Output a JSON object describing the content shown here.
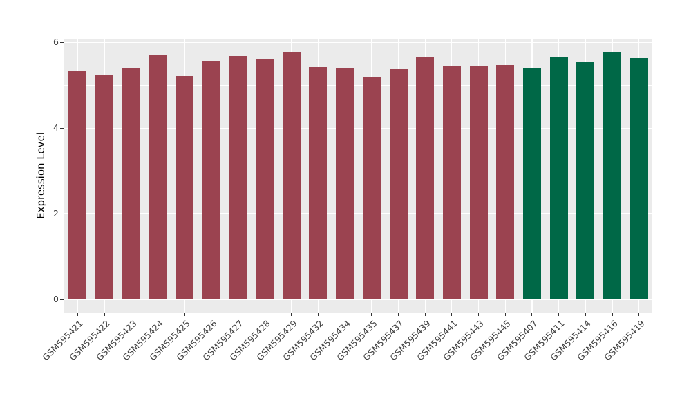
{
  "chart_data": {
    "type": "bar",
    "title": "",
    "xlabel": "",
    "ylabel": "Expression Level",
    "ylim": [
      0,
      6.09
    ],
    "yticks": [
      0,
      2,
      4,
      6
    ],
    "ytick_labels": [
      "0",
      "2",
      "4",
      "6"
    ],
    "yticks_minor": [
      1,
      3,
      5
    ],
    "grid": "on",
    "legend": "none",
    "panel_background": "#EBEBEB",
    "grid_color": "#FFFFFF",
    "axis_text_color": "#404040",
    "categories": [
      "GSM595421",
      "GSM595422",
      "GSM595423",
      "GSM595424",
      "GSM595425",
      "GSM595426",
      "GSM595427",
      "GSM595428",
      "GSM595429",
      "GSM595432",
      "GSM595434",
      "GSM595435",
      "GSM595437",
      "GSM595439",
      "GSM595441",
      "GSM595443",
      "GSM595445",
      "GSM595407",
      "GSM595411",
      "GSM595414",
      "GSM595416",
      "GSM595419"
    ],
    "values": [
      5.33,
      5.24,
      5.4,
      5.72,
      5.22,
      5.57,
      5.69,
      5.62,
      5.78,
      5.42,
      5.39,
      5.18,
      5.37,
      5.65,
      5.46,
      5.46,
      5.47,
      5.41,
      5.65,
      5.53,
      5.78,
      5.64
    ],
    "bar_colors": [
      "#9B4350",
      "#9B4350",
      "#9B4350",
      "#9B4350",
      "#9B4350",
      "#9B4350",
      "#9B4350",
      "#9B4350",
      "#9B4350",
      "#9B4350",
      "#9B4350",
      "#9B4350",
      "#9B4350",
      "#9B4350",
      "#9B4350",
      "#9B4350",
      "#9B4350",
      "#006847",
      "#006847",
      "#006847",
      "#006847",
      "#006847"
    ],
    "group_colors": {
      "dark_red": "#9B4350",
      "dark_green": "#006847"
    }
  }
}
